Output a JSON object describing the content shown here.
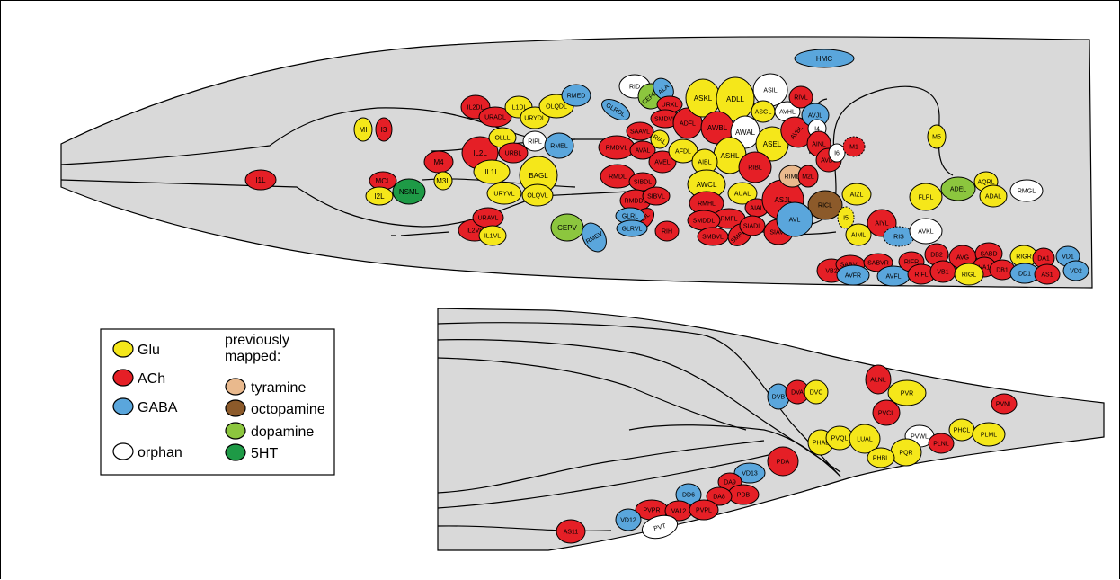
{
  "palette": {
    "Glu": "#f5e71a",
    "ACh": "#e51f26",
    "GABA": "#5aa6dc",
    "orphan": "#ffffff",
    "tyramine": "#e9b98d",
    "octopamine": "#8c5a2a",
    "dopamine": "#8cc63e",
    "5HT": "#1e9a46",
    "body": "#d9d9d9"
  },
  "legend": {
    "items": [
      {
        "label": "Glu",
        "type": "Glu"
      },
      {
        "label": "ACh",
        "type": "ACh"
      },
      {
        "label": "GABA",
        "type": "GABA"
      },
      {
        "label": "orphan",
        "type": "orphan"
      }
    ],
    "previous_title": "previously\nmapped:",
    "previous_items": [
      {
        "label": "tyramine",
        "type": "tyramine"
      },
      {
        "label": "octopamine",
        "type": "octopamine"
      },
      {
        "label": "dopamine",
        "type": "dopamine"
      },
      {
        "label": "5HT",
        "type": "5HT"
      }
    ]
  },
  "neurons_head": [
    {
      "label": "HMC",
      "type": "GABA"
    },
    {
      "label": "I1L",
      "type": "ACh"
    },
    {
      "label": "MI",
      "type": "Glu"
    },
    {
      "label": "I3",
      "type": "ACh"
    },
    {
      "label": "MCL",
      "type": "ACh"
    },
    {
      "label": "I2L",
      "type": "Glu"
    },
    {
      "label": "NSML",
      "type": "5HT"
    },
    {
      "label": "M4",
      "type": "ACh"
    },
    {
      "label": "M3L",
      "type": "Glu"
    },
    {
      "label": "IL2DL",
      "type": "ACh"
    },
    {
      "label": "URADL",
      "type": "ACh"
    },
    {
      "label": "IL1DL",
      "type": "Glu"
    },
    {
      "label": "URYDL",
      "type": "Glu"
    },
    {
      "label": "OLQDL",
      "type": "Glu"
    },
    {
      "label": "RMED",
      "type": "GABA"
    },
    {
      "label": "IL2L",
      "type": "ACh"
    },
    {
      "label": "OLLL",
      "type": "Glu"
    },
    {
      "label": "URBL",
      "type": "ACh"
    },
    {
      "label": "RIPL",
      "type": "orphan"
    },
    {
      "label": "RMEL",
      "type": "GABA"
    },
    {
      "label": "IL1L",
      "type": "Glu"
    },
    {
      "label": "BAGL",
      "type": "Glu"
    },
    {
      "label": "URYVL",
      "type": "Glu"
    },
    {
      "label": "OLQVL",
      "type": "Glu"
    },
    {
      "label": "IL2VL",
      "type": "ACh"
    },
    {
      "label": "URAVL",
      "type": "ACh"
    },
    {
      "label": "IL1VL",
      "type": "Glu"
    },
    {
      "label": "CEPV",
      "type": "dopamine"
    },
    {
      "label": "RMEV",
      "type": "GABA"
    },
    {
      "label": "RID",
      "type": "orphan"
    },
    {
      "label": "CEPDL",
      "type": "dopamine"
    },
    {
      "label": "ALA",
      "type": "GABA"
    },
    {
      "label": "GLRDL",
      "type": "GABA"
    },
    {
      "label": "URXL",
      "type": "ACh"
    },
    {
      "label": "SMDVL",
      "type": "ACh"
    },
    {
      "label": "ADFL",
      "type": "ACh"
    },
    {
      "label": "SAAVL",
      "type": "ACh"
    },
    {
      "label": "RIAL",
      "type": "Glu"
    },
    {
      "label": "RMDVL",
      "type": "ACh"
    },
    {
      "label": "AVAL",
      "type": "ACh"
    },
    {
      "label": "AVEL",
      "type": "ACh"
    },
    {
      "label": "AFDL",
      "type": "Glu"
    },
    {
      "label": "RMDL",
      "type": "ACh"
    },
    {
      "label": "SIBDL",
      "type": "ACh"
    },
    {
      "label": "RMDDL",
      "type": "ACh"
    },
    {
      "label": "SIBVL",
      "type": "ACh"
    },
    {
      "label": "SAADL",
      "type": "ACh"
    },
    {
      "label": "RIH",
      "type": "ACh"
    },
    {
      "label": "GLRL",
      "type": "GABA"
    },
    {
      "label": "GLRVL",
      "type": "GABA"
    },
    {
      "label": "ASKL",
      "type": "Glu"
    },
    {
      "label": "ADLL",
      "type": "Glu"
    },
    {
      "label": "AWBL",
      "type": "ACh"
    },
    {
      "label": "AWAL",
      "type": "orphan"
    },
    {
      "label": "ASIL",
      "type": "orphan"
    },
    {
      "label": "ASGL",
      "type": "Glu"
    },
    {
      "label": "AVHL",
      "type": "orphan"
    },
    {
      "label": "ASEL",
      "type": "Glu"
    },
    {
      "label": "ASHL",
      "type": "Glu"
    },
    {
      "label": "AIBL",
      "type": "Glu"
    },
    {
      "label": "RIBL",
      "type": "ACh"
    },
    {
      "label": "AWCL",
      "type": "Glu"
    },
    {
      "label": "RMHL",
      "type": "ACh"
    },
    {
      "label": "RMFL",
      "type": "ACh"
    },
    {
      "label": "SMDDL",
      "type": "ACh"
    },
    {
      "label": "SMBVL",
      "type": "ACh"
    },
    {
      "label": "SMBDL",
      "type": "ACh"
    },
    {
      "label": "AUAL",
      "type": "Glu"
    },
    {
      "label": "AIAL",
      "type": "ACh"
    },
    {
      "label": "SIADL",
      "type": "ACh"
    },
    {
      "label": "SIAVL",
      "type": "ACh"
    },
    {
      "label": "ASJL",
      "type": "ACh"
    },
    {
      "label": "RIML",
      "type": "tyramine"
    },
    {
      "label": "M2L",
      "type": "ACh"
    },
    {
      "label": "RIVL",
      "type": "ACh"
    },
    {
      "label": "AVBL",
      "type": "ACh"
    },
    {
      "label": "AVJL",
      "type": "GABA"
    },
    {
      "label": "I4",
      "type": "orphan"
    },
    {
      "label": "AINL",
      "type": "ACh"
    },
    {
      "label": "AVDL",
      "type": "ACh"
    },
    {
      "label": "I6",
      "type": "orphan"
    },
    {
      "label": "M1",
      "type": "ACh"
    },
    {
      "label": "RICL",
      "type": "octopamine"
    },
    {
      "label": "AIZL",
      "type": "Glu"
    },
    {
      "label": "AVL",
      "type": "GABA"
    },
    {
      "label": "I5",
      "type": "Glu"
    },
    {
      "label": "AIML",
      "type": "Glu"
    },
    {
      "label": "AIYL",
      "type": "ACh"
    },
    {
      "label": "RIS",
      "type": "GABA"
    },
    {
      "label": "AVKL",
      "type": "orphan"
    },
    {
      "label": "M5",
      "type": "Glu"
    },
    {
      "label": "FLPL",
      "type": "Glu"
    },
    {
      "label": "ADEL",
      "type": "dopamine"
    },
    {
      "label": "AQRL",
      "type": "Glu"
    },
    {
      "label": "ADAL",
      "type": "Glu"
    },
    {
      "label": "RMGL",
      "type": "orphan"
    },
    {
      "label": "VB2",
      "type": "ACh"
    },
    {
      "label": "SABVL",
      "type": "ACh"
    },
    {
      "label": "AVFR",
      "type": "GABA"
    },
    {
      "label": "SABVR",
      "type": "ACh"
    },
    {
      "label": "AVFL",
      "type": "GABA"
    },
    {
      "label": "RIFR",
      "type": "ACh"
    },
    {
      "label": "RIFL",
      "type": "ACh"
    },
    {
      "label": "DB2",
      "type": "ACh"
    },
    {
      "label": "VB1",
      "type": "ACh"
    },
    {
      "label": "AVG",
      "type": "ACh"
    },
    {
      "label": "SABD",
      "type": "ACh"
    },
    {
      "label": "VA1",
      "type": "ACh"
    },
    {
      "label": "DB1",
      "type": "ACh"
    },
    {
      "label": "RIGR",
      "type": "Glu"
    },
    {
      "label": "RIGL",
      "type": "Glu"
    },
    {
      "label": "DA1",
      "type": "ACh"
    },
    {
      "label": "VD1",
      "type": "GABA"
    },
    {
      "label": "DD1",
      "type": "GABA"
    },
    {
      "label": "AS1",
      "type": "ACh"
    },
    {
      "label": "VD2",
      "type": "GABA"
    }
  ],
  "neurons_tail": [
    {
      "label": "ALNL",
      "type": "ACh"
    },
    {
      "label": "DVB",
      "type": "GABA"
    },
    {
      "label": "DVA",
      "type": "ACh"
    },
    {
      "label": "DVC",
      "type": "Glu"
    },
    {
      "label": "PVR",
      "type": "Glu"
    },
    {
      "label": "PVNL",
      "type": "ACh"
    },
    {
      "label": "PVCL",
      "type": "ACh"
    },
    {
      "label": "PVWL",
      "type": "orphan"
    },
    {
      "label": "PHCL",
      "type": "Glu"
    },
    {
      "label": "PLML",
      "type": "Glu"
    },
    {
      "label": "PHAL",
      "type": "Glu"
    },
    {
      "label": "PVQL",
      "type": "Glu"
    },
    {
      "label": "LUAL",
      "type": "Glu"
    },
    {
      "label": "PQR",
      "type": "Glu"
    },
    {
      "label": "PLNL",
      "type": "ACh"
    },
    {
      "label": "PHBL",
      "type": "Glu"
    },
    {
      "label": "PDA",
      "type": "ACh"
    },
    {
      "label": "VD13",
      "type": "GABA"
    },
    {
      "label": "DA9",
      "type": "ACh"
    },
    {
      "label": "PDB",
      "type": "ACh"
    },
    {
      "label": "DA8",
      "type": "ACh"
    },
    {
      "label": "DD6",
      "type": "GABA"
    },
    {
      "label": "PVPR",
      "type": "ACh"
    },
    {
      "label": "VA12",
      "type": "ACh"
    },
    {
      "label": "PVPL",
      "type": "ACh"
    },
    {
      "label": "VD12",
      "type": "GABA"
    },
    {
      "label": "PVT",
      "type": "orphan"
    },
    {
      "label": "AS11",
      "type": "ACh"
    }
  ]
}
